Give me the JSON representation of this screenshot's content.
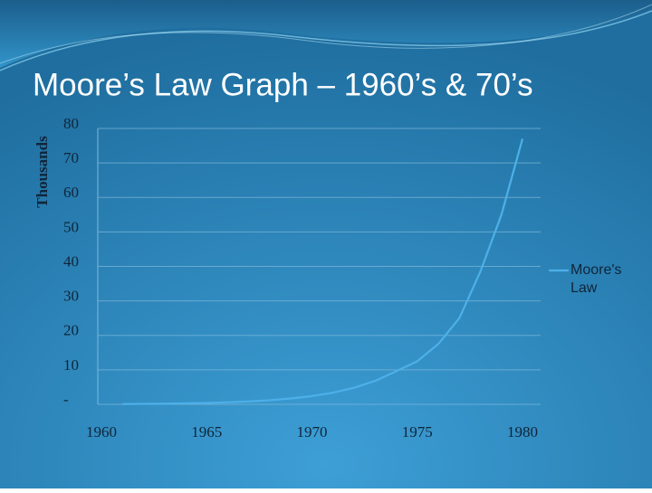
{
  "chart_data": {
    "type": "line",
    "title": "Moore’s Law Graph – 1960’s & 70’s",
    "y_label": "Thousands",
    "x": [
      1961,
      1962,
      1963,
      1964,
      1965,
      1966,
      1967,
      1968,
      1969,
      1970,
      1971,
      1972,
      1973,
      1974,
      1975,
      1976,
      1977,
      1978,
      1979,
      1980
    ],
    "series": [
      {
        "name": "Moore's Law",
        "color": "#4db0e8",
        "values": [
          0.1,
          0.15,
          0.2,
          0.3,
          0.4,
          0.6,
          0.85,
          1.2,
          1.7,
          2.4,
          3.4,
          4.8,
          6.8,
          9.6,
          12.5,
          17.5,
          25,
          38.5,
          55,
          77
        ]
      }
    ],
    "xlim": [
      1960,
      1980
    ],
    "xticks": [
      1960,
      1965,
      1970,
      1975,
      1980
    ],
    "ylim": [
      0,
      80
    ],
    "yticks": [
      {
        "value": 0,
        "label": "-"
      },
      10,
      20,
      30,
      40,
      50,
      60,
      70,
      80
    ],
    "grid": true,
    "legend": "right"
  }
}
